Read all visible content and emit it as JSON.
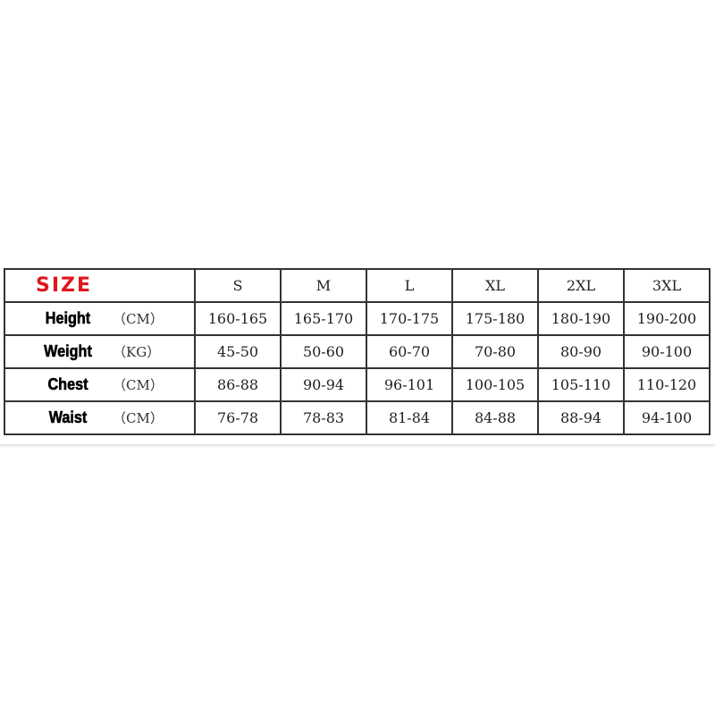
{
  "table": {
    "header_label": "SIZE",
    "sizes": [
      "S",
      "M",
      "L",
      "XL",
      "2XL",
      "3XL"
    ],
    "rows": [
      {
        "name": "Height",
        "unit": "（CM）",
        "values": [
          "160-165",
          "165-170",
          "170-175",
          "175-180",
          "180-190",
          "190-200"
        ]
      },
      {
        "name": "Weight",
        "unit": "（KG）",
        "values": [
          "45-50",
          "50-60",
          "60-70",
          "70-80",
          "80-90",
          "90-100"
        ]
      },
      {
        "name": "Chest",
        "unit": "（CM）",
        "values": [
          "86-88",
          "90-94",
          "96-101",
          "100-105",
          "105-110",
          "110-120"
        ]
      },
      {
        "name": "Waist",
        "unit": "（CM）",
        "values": [
          "76-78",
          "78-83",
          "81-84",
          "84-88",
          "88-94",
          "94-100"
        ]
      }
    ]
  },
  "colors": {
    "header_label": "#e0161e",
    "border": "#333333"
  }
}
